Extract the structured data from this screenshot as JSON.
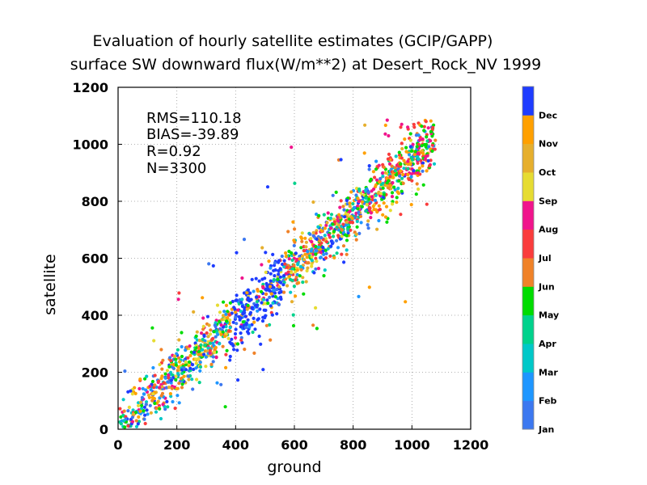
{
  "chart_data": {
    "type": "scatter",
    "title": "Evaluation of hourly satellite estimates (GCIP/GAPP)",
    "subtitle": "surface SW downward flux(W/m**2) at Desert_Rock_NV 1999",
    "xlabel": "ground",
    "ylabel": "satellite",
    "xlim": [
      0,
      1200
    ],
    "ylim": [
      0,
      1200
    ],
    "xticks": [
      "0",
      "200",
      "400",
      "600",
      "800",
      "1000",
      "1200"
    ],
    "yticks": [
      "0",
      "200",
      "400",
      "600",
      "800",
      "1000",
      "1200"
    ],
    "grid": true,
    "stats": [
      "RMS=110.18",
      "BIAS=-39.89",
      "R=0.92",
      "N=3300"
    ],
    "colorbar": {
      "placement": "right",
      "labels": [
        "Jan",
        "Feb",
        "Mar",
        "Apr",
        "May",
        "Jun",
        "Jul",
        "Aug",
        "Sep",
        "Oct",
        "Nov",
        "Dec"
      ],
      "colors": [
        "#3c78f0",
        "#1e96ff",
        "#00c8c8",
        "#00d28c",
        "#00dc00",
        "#f08228",
        "#fa3c3c",
        "#f0148c",
        "#e6dc32",
        "#e6af2d",
        "#ffa000",
        "#1e3cff"
      ]
    }
  }
}
